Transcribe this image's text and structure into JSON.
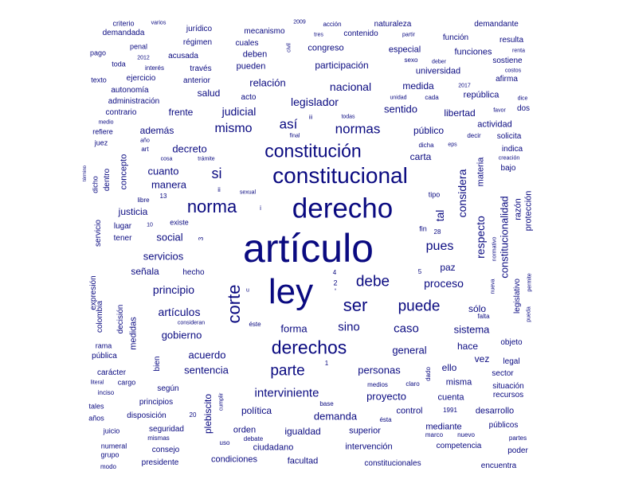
{
  "color": "#0a0a80",
  "words": [
    {
      "text": "artículo",
      "weight": 1.0
    },
    {
      "text": "ley",
      "weight": 0.85
    },
    {
      "text": "derecho",
      "weight": 0.66
    },
    {
      "text": "constitucional",
      "weight": 0.56
    },
    {
      "text": "constitución",
      "weight": 0.44
    },
    {
      "text": "derechos",
      "weight": 0.44
    },
    {
      "text": "norma",
      "weight": 0.42
    },
    {
      "text": "ser",
      "weight": 0.42
    },
    {
      "text": "corte",
      "weight": 0.4
    },
    {
      "text": "debe",
      "weight": 0.36
    },
    {
      "text": "parte",
      "weight": 0.36
    },
    {
      "text": "puede",
      "weight": 0.36
    },
    {
      "text": "normas",
      "weight": 0.33
    },
    {
      "text": "así",
      "weight": 0.31
    },
    {
      "text": "si",
      "weight": 0.33
    },
    {
      "text": "mismo",
      "weight": 0.3
    },
    {
      "text": "pues",
      "weight": 0.3
    },
    {
      "text": "interviniente",
      "weight": 0.28
    },
    {
      "text": "caso",
      "weight": 0.28
    },
    {
      "text": "sino",
      "weight": 0.28
    },
    {
      "text": "proceso",
      "weight": 0.26
    },
    {
      "text": "principio",
      "weight": 0.26
    },
    {
      "text": "artículos",
      "weight": 0.26
    },
    {
      "text": "nacional",
      "weight": 0.26
    },
    {
      "text": "legislador",
      "weight": 0.25
    },
    {
      "text": "judicial",
      "weight": 0.25
    },
    {
      "text": "considera",
      "weight": 0.25
    },
    {
      "text": "respecto",
      "weight": 0.25
    },
    {
      "text": "personas",
      "weight": 0.24
    },
    {
      "text": "acuerdo",
      "weight": 0.24
    },
    {
      "text": "gobierno",
      "weight": 0.23
    },
    {
      "text": "servicios",
      "weight": 0.23
    },
    {
      "text": "social",
      "weight": 0.23
    },
    {
      "text": "manera",
      "weight": 0.23
    },
    {
      "text": "cuanto",
      "weight": 0.23
    },
    {
      "text": "decreto",
      "weight": 0.23
    },
    {
      "text": "sentido",
      "weight": 0.23
    },
    {
      "text": "general",
      "weight": 0.23
    },
    {
      "text": "forma",
      "weight": 0.22
    },
    {
      "text": "sistema",
      "weight": 0.22
    },
    {
      "text": "proyecto",
      "weight": 0.22
    },
    {
      "text": "sentencia",
      "weight": 0.22
    },
    {
      "text": "relación",
      "weight": 0.22
    },
    {
      "text": "demanda",
      "weight": 0.22
    },
    {
      "text": "constitucionalidad",
      "weight": 0.22
    },
    {
      "text": "tal",
      "weight": 0.22
    },
    {
      "text": "público",
      "weight": 0.21
    },
    {
      "text": "igualdad",
      "weight": 0.21
    },
    {
      "text": "política",
      "weight": 0.21
    },
    {
      "text": "justicia",
      "weight": 0.2
    },
    {
      "text": "señala",
      "weight": 0.2
    },
    {
      "text": "libertad",
      "weight": 0.2
    },
    {
      "text": "paz",
      "weight": 0.2
    },
    {
      "text": "participación",
      "weight": 0.2
    },
    {
      "text": "medida",
      "weight": 0.19
    },
    {
      "text": "plebiscito",
      "weight": 0.19
    },
    {
      "text": "sólo",
      "weight": 0.19
    },
    {
      "text": "carta",
      "weight": 0.19
    },
    {
      "text": "salud",
      "weight": 0.19
    },
    {
      "text": "frente",
      "weight": 0.19
    },
    {
      "text": "además",
      "weight": 0.19
    },
    {
      "text": "hace",
      "weight": 0.19
    },
    {
      "text": "ello",
      "weight": 0.18
    },
    {
      "text": "vez",
      "weight": 0.18
    },
    {
      "text": "intervención",
      "weight": 0.18
    },
    {
      "text": "orden",
      "weight": 0.18
    },
    {
      "text": "control",
      "weight": 0.18
    },
    {
      "text": "misma",
      "weight": 0.18
    },
    {
      "text": "concepto",
      "weight": 0.17
    },
    {
      "text": "medidas",
      "weight": 0.17
    },
    {
      "text": "superior",
      "weight": 0.17
    },
    {
      "text": "ciudadano",
      "weight": 0.17
    },
    {
      "text": "facultad",
      "weight": 0.17
    },
    {
      "text": "condiciones",
      "weight": 0.17
    },
    {
      "text": "congreso",
      "weight": 0.17
    },
    {
      "text": "deben",
      "weight": 0.17
    },
    {
      "text": "pueden",
      "weight": 0.17
    },
    {
      "text": "especial",
      "weight": 0.17
    },
    {
      "text": "universidad",
      "weight": 0.17
    },
    {
      "text": "mediante",
      "weight": 0.17
    },
    {
      "text": "cuenta",
      "weight": 0.17
    },
    {
      "text": "materia",
      "weight": 0.16
    },
    {
      "text": "razón",
      "weight": 0.16
    },
    {
      "text": "protección",
      "weight": 0.16
    },
    {
      "text": "actividad",
      "weight": 0.16
    },
    {
      "text": "república",
      "weight": 0.16
    },
    {
      "text": "desarrollo",
      "weight": 0.16
    },
    {
      "text": "funciones",
      "weight": 0.16
    },
    {
      "text": "función",
      "weight": 0.15
    },
    {
      "text": "contenido",
      "weight": 0.15
    },
    {
      "text": "cuales",
      "weight": 0.15
    },
    {
      "text": "mecanismo",
      "weight": 0.15
    },
    {
      "text": "jurídico",
      "weight": 0.15
    },
    {
      "text": "régimen",
      "weight": 0.15
    },
    {
      "text": "acusada",
      "weight": 0.15
    },
    {
      "text": "través",
      "weight": 0.15
    },
    {
      "text": "anterior",
      "weight": 0.15
    },
    {
      "text": "administración",
      "weight": 0.15
    },
    {
      "text": "ejercicio",
      "weight": 0.15
    },
    {
      "text": "naturaleza",
      "weight": 0.15
    },
    {
      "text": "demandante",
      "weight": 0.14
    },
    {
      "text": "demandada",
      "weight": 0.14
    },
    {
      "text": "afirma",
      "weight": 0.14
    },
    {
      "text": "sostiene",
      "weight": 0.14
    },
    {
      "text": "resulta",
      "weight": 0.14
    },
    {
      "text": "servicio",
      "weight": 0.14
    },
    {
      "text": "colombia",
      "weight": 0.14
    },
    {
      "text": "expresión",
      "weight": 0.14
    },
    {
      "text": "decisión",
      "weight": 0.14
    },
    {
      "text": "bien",
      "weight": 0.14
    },
    {
      "text": "principios",
      "weight": 0.14
    },
    {
      "text": "según",
      "weight": 0.14
    },
    {
      "text": "disposición",
      "weight": 0.14
    },
    {
      "text": "seguridad",
      "weight": 0.14
    },
    {
      "text": "consejo",
      "weight": 0.14
    },
    {
      "text": "presidente",
      "weight": 0.14
    },
    {
      "text": "pública",
      "weight": 0.14
    },
    {
      "text": "carácter",
      "weight": 0.14
    },
    {
      "text": "lugar",
      "weight": 0.14
    },
    {
      "text": "tener",
      "weight": 0.14
    },
    {
      "text": "hecho",
      "weight": 0.14
    },
    {
      "text": "situación",
      "weight": 0.14
    },
    {
      "text": "recursos",
      "weight": 0.14
    },
    {
      "text": "públicos",
      "weight": 0.14
    },
    {
      "text": "competencia",
      "weight": 0.14
    },
    {
      "text": "poder",
      "weight": 0.13
    },
    {
      "text": "encuentra",
      "weight": 0.13
    },
    {
      "text": "constitucionales",
      "weight": 0.13
    },
    {
      "text": "legislativo",
      "weight": 0.13
    },
    {
      "text": "dentro",
      "weight": 0.13
    },
    {
      "text": "dicho",
      "weight": 0.12
    },
    {
      "text": "sector",
      "weight": 0.13
    },
    {
      "text": "legal",
      "weight": 0.13
    },
    {
      "text": "objeto",
      "weight": 0.13
    },
    {
      "text": "solicita",
      "weight": 0.13
    },
    {
      "text": "indica",
      "weight": 0.13
    },
    {
      "text": "bajo",
      "weight": 0.13
    },
    {
      "text": "dos",
      "weight": 0.13
    },
    {
      "text": "acto",
      "weight": 0.13
    },
    {
      "text": "autonomía",
      "weight": 0.13
    },
    {
      "text": "contrario",
      "weight": 0.13
    },
    {
      "text": "criterio",
      "weight": 0.12
    },
    {
      "text": "penal",
      "weight": 0.12
    },
    {
      "text": "pago",
      "weight": 0.12
    },
    {
      "text": "toda",
      "weight": 0.12
    },
    {
      "text": "texto",
      "weight": 0.12
    },
    {
      "text": "refiere",
      "weight": 0.12
    },
    {
      "text": "juez",
      "weight": 0.12
    },
    {
      "text": "rama",
      "weight": 0.12
    },
    {
      "text": "cargo",
      "weight": 0.12
    },
    {
      "text": "tales",
      "weight": 0.12
    },
    {
      "text": "años",
      "weight": 0.12
    },
    {
      "text": "juicio",
      "weight": 0.12
    },
    {
      "text": "numeral",
      "weight": 0.12
    },
    {
      "text": "grupo",
      "weight": 0.12
    },
    {
      "text": "modo",
      "weight": 0.11
    },
    {
      "text": "mismas",
      "weight": 0.11
    },
    {
      "text": "uso",
      "weight": 0.11
    },
    {
      "text": "debate",
      "weight": 0.11
    },
    {
      "text": "ésta",
      "weight": 0.11
    },
    {
      "text": "marco",
      "weight": 0.11
    },
    {
      "text": "nuevo",
      "weight": 0.11
    },
    {
      "text": "partes",
      "weight": 0.11
    },
    {
      "text": "base",
      "weight": 0.11
    },
    {
      "text": "medios",
      "weight": 0.11
    },
    {
      "text": "claro",
      "weight": 0.11
    },
    {
      "text": "dado",
      "weight": 0.11
    },
    {
      "text": "1991",
      "weight": 0.11
    },
    {
      "text": "cumplir",
      "weight": 0.1
    },
    {
      "text": "inciso",
      "weight": 0.11
    },
    {
      "text": "literal",
      "weight": 0.1
    },
    {
      "text": "20",
      "weight": 0.11
    },
    {
      "text": "1",
      "weight": 0.11
    },
    {
      "text": "éste",
      "weight": 0.11
    },
    {
      "text": "consideran",
      "weight": 0.1
    },
    {
      "text": "falta",
      "weight": 0.11
    },
    {
      "text": "pueda",
      "weight": 0.1
    },
    {
      "text": "permite",
      "weight": 0.1
    },
    {
      "text": "nueva",
      "weight": 0.1
    },
    {
      "text": "normativo",
      "weight": 0.1
    },
    {
      "text": "5",
      "weight": 0.11
    },
    {
      "text": "28",
      "weight": 0.11
    },
    {
      "text": "fin",
      "weight": 0.12
    },
    {
      "text": "tipo",
      "weight": 0.12
    },
    {
      "text": "4",
      "weight": 0.11
    },
    {
      "text": "2",
      "weight": 0.12
    },
    {
      "text": "°",
      "weight": 0.1
    },
    {
      "text": "u",
      "weight": 0.1
    },
    {
      "text": "3",
      "weight": 0.11
    },
    {
      "text": "existe",
      "weight": 0.12
    },
    {
      "text": "10",
      "weight": 0.1
    },
    {
      "text": "13",
      "weight": 0.11
    },
    {
      "text": "libre",
      "weight": 0.11
    },
    {
      "text": "i",
      "weight": 0.11
    },
    {
      "text": "ii",
      "weight": 0.11
    },
    {
      "text": "sexual",
      "weight": 0.1
    },
    {
      "text": "término",
      "weight": 0.1
    },
    {
      "text": "art",
      "weight": 0.11
    },
    {
      "text": "año",
      "weight": 0.1
    },
    {
      "text": "cosa",
      "weight": 0.1
    },
    {
      "text": "trámite",
      "weight": 0.1
    },
    {
      "text": "medio",
      "weight": 0.1
    },
    {
      "text": "iii",
      "weight": 0.1
    },
    {
      "text": "todas",
      "weight": 0.1
    },
    {
      "text": "final",
      "weight": 0.1
    },
    {
      "text": "dicha",
      "weight": 0.11
    },
    {
      "text": "eps",
      "weight": 0.1
    },
    {
      "text": "decir",
      "weight": 0.11
    },
    {
      "text": "creación",
      "weight": 0.1
    },
    {
      "text": "favor",
      "weight": 0.1
    },
    {
      "text": "dice",
      "weight": 0.1
    },
    {
      "text": "costos",
      "weight": 0.1
    },
    {
      "text": "renta",
      "weight": 0.1
    },
    {
      "text": "2017",
      "weight": 0.1
    },
    {
      "text": "cada",
      "weight": 0.11
    },
    {
      "text": "unidad",
      "weight": 0.1
    },
    {
      "text": "deber",
      "weight": 0.1
    },
    {
      "text": "sexo",
      "weight": 0.11
    },
    {
      "text": "partir",
      "weight": 0.1
    },
    {
      "text": "tres",
      "weight": 0.1
    },
    {
      "text": "acción",
      "weight": 0.11
    },
    {
      "text": "2009",
      "weight": 0.1
    },
    {
      "text": "civil",
      "weight": 0.1
    },
    {
      "text": "varios",
      "weight": 0.1
    },
    {
      "text": "2012",
      "weight": 0.1
    },
    {
      "text": "interés",
      "weight": 0.11
    }
  ]
}
